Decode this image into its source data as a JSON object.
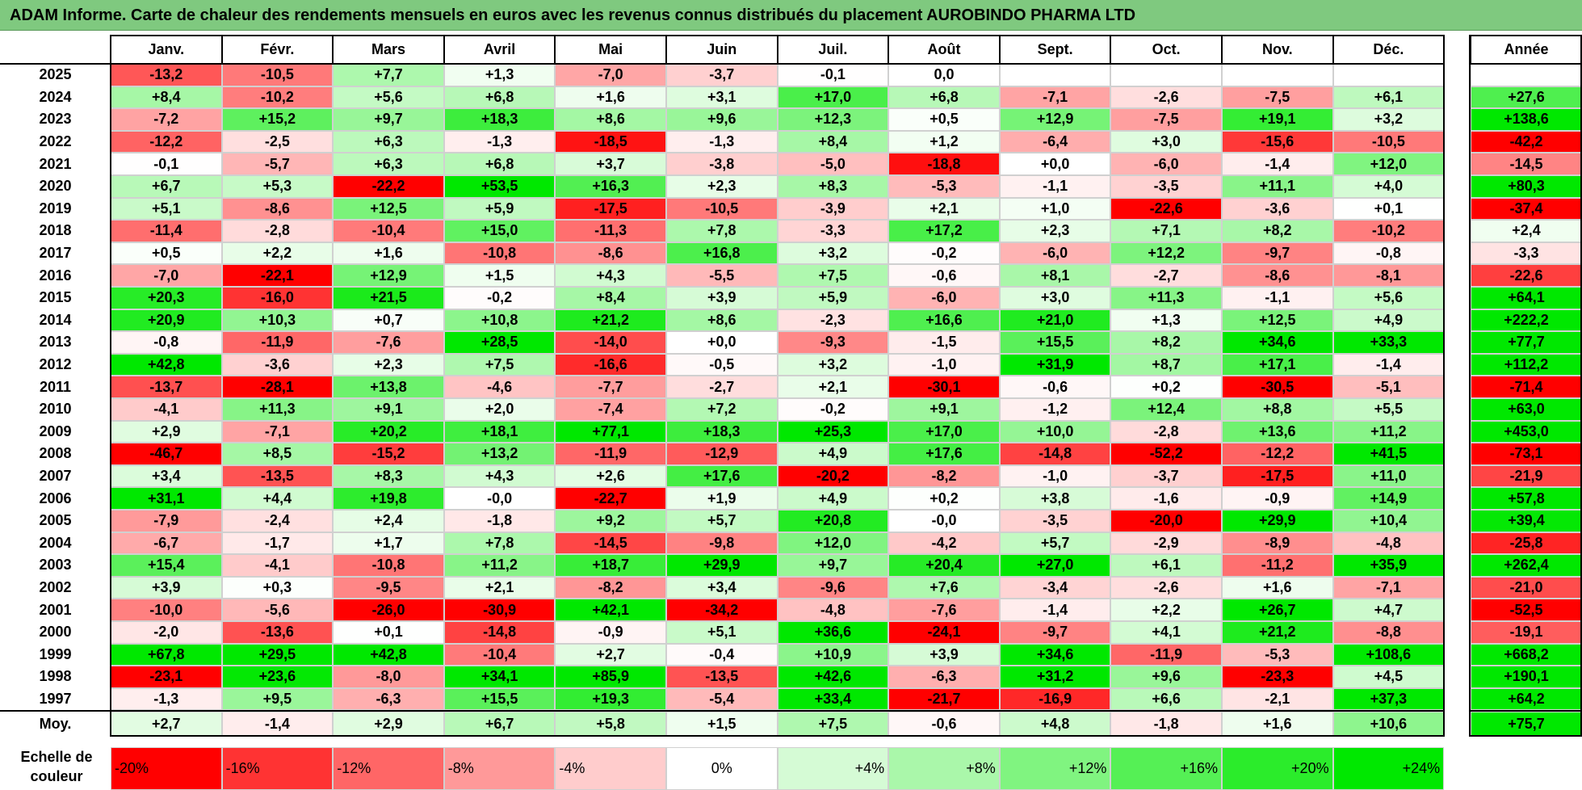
{
  "title": "ADAM Informe. Carte de chaleur des rendements mensuels en euros avec les revenus connus distribués du placement AUROBINDO PHARMA LTD",
  "chart_data": {
    "type": "heatmap",
    "columns": [
      "Janv.",
      "Févr.",
      "Mars",
      "Avril",
      "Mai",
      "Juin",
      "Juil.",
      "Août",
      "Sept.",
      "Oct.",
      "Nov.",
      "Déc."
    ],
    "year_column_label": "Année",
    "average_row_label": "Moy.",
    "rows": [
      {
        "year": "2025",
        "values": [
          "-13,2",
          "-10,5",
          "+7,7",
          "+1,3",
          "-7,0",
          "-3,7",
          "-0,1",
          "0,0",
          "",
          "",
          "",
          ""
        ],
        "annual": ""
      },
      {
        "year": "2024",
        "values": [
          "+8,4",
          "-10,2",
          "+5,6",
          "+6,8",
          "+1,6",
          "+3,1",
          "+17,0",
          "+6,8",
          "-7,1",
          "-2,6",
          "-7,5",
          "+6,1"
        ],
        "annual": "+27,6"
      },
      {
        "year": "2023",
        "values": [
          "-7,2",
          "+15,2",
          "+9,7",
          "+18,3",
          "+8,6",
          "+9,6",
          "+12,3",
          "+0,5",
          "+12,9",
          "-7,5",
          "+19,1",
          "+3,2"
        ],
        "annual": "+138,6"
      },
      {
        "year": "2022",
        "values": [
          "-12,2",
          "-2,5",
          "+6,3",
          "-1,3",
          "-18,5",
          "-1,3",
          "+8,4",
          "+1,2",
          "-6,4",
          "+3,0",
          "-15,6",
          "-10,5"
        ],
        "annual": "-42,2"
      },
      {
        "year": "2021",
        "values": [
          "-0,1",
          "-5,7",
          "+6,3",
          "+6,8",
          "+3,7",
          "-3,8",
          "-5,0",
          "-18,8",
          "+0,0",
          "-6,0",
          "-1,4",
          "+12,0"
        ],
        "annual": "-14,5"
      },
      {
        "year": "2020",
        "values": [
          "+6,7",
          "+5,3",
          "-22,2",
          "+53,5",
          "+16,3",
          "+2,3",
          "+8,3",
          "-5,3",
          "-1,1",
          "-3,5",
          "+11,1",
          "+4,0"
        ],
        "annual": "+80,3"
      },
      {
        "year": "2019",
        "values": [
          "+5,1",
          "-8,6",
          "+12,5",
          "+5,9",
          "-17,5",
          "-10,5",
          "-3,9",
          "+2,1",
          "+1,0",
          "-22,6",
          "-3,6",
          "+0,1"
        ],
        "annual": "-37,4"
      },
      {
        "year": "2018",
        "values": [
          "-11,4",
          "-2,8",
          "-10,4",
          "+15,0",
          "-11,3",
          "+7,8",
          "-3,3",
          "+17,2",
          "+2,3",
          "+7,1",
          "+8,2",
          "-10,2"
        ],
        "annual": "+2,4"
      },
      {
        "year": "2017",
        "values": [
          "+0,5",
          "+2,2",
          "+1,6",
          "-10,8",
          "-8,6",
          "+16,8",
          "+3,2",
          "-0,2",
          "-6,0",
          "+12,2",
          "-9,7",
          "-0,8"
        ],
        "annual": "-3,3"
      },
      {
        "year": "2016",
        "values": [
          "-7,0",
          "-22,1",
          "+12,9",
          "+1,5",
          "+4,3",
          "-5,5",
          "+7,5",
          "-0,6",
          "+8,1",
          "-2,7",
          "-8,6",
          "-8,1"
        ],
        "annual": "-22,6"
      },
      {
        "year": "2015",
        "values": [
          "+20,3",
          "-16,0",
          "+21,5",
          "-0,2",
          "+8,4",
          "+3,9",
          "+5,9",
          "-6,0",
          "+3,0",
          "+11,3",
          "-1,1",
          "+5,6"
        ],
        "annual": "+64,1"
      },
      {
        "year": "2014",
        "values": [
          "+20,9",
          "+10,3",
          "+0,7",
          "+10,8",
          "+21,2",
          "+8,6",
          "-2,3",
          "+16,6",
          "+21,0",
          "+1,3",
          "+12,5",
          "+4,9"
        ],
        "annual": "+222,2"
      },
      {
        "year": "2013",
        "values": [
          "-0,8",
          "-11,9",
          "-7,6",
          "+28,5",
          "-14,0",
          "+0,0",
          "-9,3",
          "-1,5",
          "+15,5",
          "+8,2",
          "+34,6",
          "+33,3"
        ],
        "annual": "+77,7"
      },
      {
        "year": "2012",
        "values": [
          "+42,8",
          "-3,6",
          "+2,3",
          "+7,5",
          "-16,6",
          "-0,5",
          "+3,2",
          "-1,0",
          "+31,9",
          "+8,7",
          "+17,1",
          "-1,4"
        ],
        "annual": "+112,2"
      },
      {
        "year": "2011",
        "values": [
          "-13,7",
          "-28,1",
          "+13,8",
          "-4,6",
          "-7,7",
          "-2,7",
          "+2,1",
          "-30,1",
          "-0,6",
          "+0,2",
          "-30,5",
          "-5,1"
        ],
        "annual": "-71,4"
      },
      {
        "year": "2010",
        "values": [
          "-4,1",
          "+11,3",
          "+9,1",
          "+2,0",
          "-7,4",
          "+7,2",
          "-0,2",
          "+9,1",
          "-1,2",
          "+12,4",
          "+8,8",
          "+5,5"
        ],
        "annual": "+63,0"
      },
      {
        "year": "2009",
        "values": [
          "+2,9",
          "-7,1",
          "+20,2",
          "+18,1",
          "+77,1",
          "+18,3",
          "+25,3",
          "+17,0",
          "+10,0",
          "-2,8",
          "+13,6",
          "+11,2"
        ],
        "annual": "+453,0"
      },
      {
        "year": "2008",
        "values": [
          "-46,7",
          "+8,5",
          "-15,2",
          "+13,2",
          "-11,9",
          "-12,9",
          "+4,9",
          "+17,6",
          "-14,8",
          "-52,2",
          "-12,2",
          "+41,5"
        ],
        "annual": "-73,1"
      },
      {
        "year": "2007",
        "values": [
          "+3,4",
          "-13,5",
          "+8,3",
          "+4,3",
          "+2,6",
          "+17,6",
          "-20,2",
          "-8,2",
          "-1,0",
          "-3,7",
          "-17,5",
          "+11,0"
        ],
        "annual": "-21,9"
      },
      {
        "year": "2006",
        "values": [
          "+31,1",
          "+4,4",
          "+19,8",
          "-0,0",
          "-22,7",
          "+1,9",
          "+4,9",
          "+0,2",
          "+3,8",
          "-1,6",
          "-0,9",
          "+14,9"
        ],
        "annual": "+57,8"
      },
      {
        "year": "2005",
        "values": [
          "-7,9",
          "-2,4",
          "+2,4",
          "-1,8",
          "+9,2",
          "+5,7",
          "+20,8",
          "-0,0",
          "-3,5",
          "-20,0",
          "+29,9",
          "+10,4"
        ],
        "annual": "+39,4"
      },
      {
        "year": "2004",
        "values": [
          "-6,7",
          "-1,7",
          "+1,7",
          "+7,8",
          "-14,5",
          "-9,8",
          "+12,0",
          "-4,2",
          "+5,7",
          "-2,9",
          "-8,9",
          "-4,8"
        ],
        "annual": "-25,8"
      },
      {
        "year": "2003",
        "values": [
          "+15,4",
          "-4,1",
          "-10,8",
          "+11,2",
          "+18,7",
          "+29,9",
          "+9,7",
          "+20,4",
          "+27,0",
          "+6,1",
          "-11,2",
          "+35,9"
        ],
        "annual": "+262,4"
      },
      {
        "year": "2002",
        "values": [
          "+3,9",
          "+0,3",
          "-9,5",
          "+2,1",
          "-8,2",
          "+3,4",
          "-9,6",
          "+7,6",
          "-3,4",
          "-2,6",
          "+1,6",
          "-7,1"
        ],
        "annual": "-21,0"
      },
      {
        "year": "2001",
        "values": [
          "-10,0",
          "-5,6",
          "-26,0",
          "-30,9",
          "+42,1",
          "-34,2",
          "-4,8",
          "-7,6",
          "-1,4",
          "+2,2",
          "+26,7",
          "+4,7"
        ],
        "annual": "-52,5"
      },
      {
        "year": "2000",
        "values": [
          "-2,0",
          "-13,6",
          "+0,1",
          "-14,8",
          "-0,9",
          "+5,1",
          "+36,6",
          "-24,1",
          "-9,7",
          "+4,1",
          "+21,2",
          "-8,8"
        ],
        "annual": "-19,1"
      },
      {
        "year": "1999",
        "values": [
          "+67,8",
          "+29,5",
          "+42,8",
          "-10,4",
          "+2,7",
          "-0,4",
          "+10,9",
          "+3,9",
          "+34,6",
          "-11,9",
          "-5,3",
          "+108,6"
        ],
        "annual": "+668,2"
      },
      {
        "year": "1998",
        "values": [
          "-23,1",
          "+23,6",
          "-8,0",
          "+34,1",
          "+85,9",
          "-13,5",
          "+42,6",
          "-6,3",
          "+31,2",
          "+9,6",
          "-23,3",
          "+4,5"
        ],
        "annual": "+190,1"
      },
      {
        "year": "1997",
        "values": [
          "-1,3",
          "+9,5",
          "-6,3",
          "+15,5",
          "+19,3",
          "-5,4",
          "+33,4",
          "-21,7",
          "-16,9",
          "+6,6",
          "-2,1",
          "+37,3"
        ],
        "annual": "+64,2"
      }
    ],
    "averages": {
      "values": [
        "+2,7",
        "-1,4",
        "+2,9",
        "+6,7",
        "+5,8",
        "+1,5",
        "+7,5",
        "-0,6",
        "+4,8",
        "-1,8",
        "+1,6",
        "+10,6"
      ],
      "annual": "+75,7"
    },
    "scale_label": "Echelle de couleur",
    "scale": [
      {
        "label": "-20%",
        "value": -20,
        "align": "left"
      },
      {
        "label": "-16%",
        "value": -16,
        "align": "left"
      },
      {
        "label": "-12%",
        "value": -12,
        "align": "left"
      },
      {
        "label": "-8%",
        "value": -8,
        "align": "left"
      },
      {
        "label": "-4%",
        "value": -4,
        "align": "left"
      },
      {
        "label": "0%",
        "value": 0,
        "align": "center"
      },
      {
        "label": "+4%",
        "value": 4,
        "align": "right"
      },
      {
        "label": "+8%",
        "value": 8,
        "align": "right"
      },
      {
        "label": "+12%",
        "value": 12,
        "align": "right"
      },
      {
        "label": "+16%",
        "value": 16,
        "align": "right"
      },
      {
        "label": "+20%",
        "value": 20,
        "align": "right"
      },
      {
        "label": "+24%",
        "value": 24,
        "align": "right"
      }
    ],
    "colors": {
      "negative_max": "#ff0000",
      "positive_max": "#00e800",
      "neutral": "#ffffff"
    }
  }
}
